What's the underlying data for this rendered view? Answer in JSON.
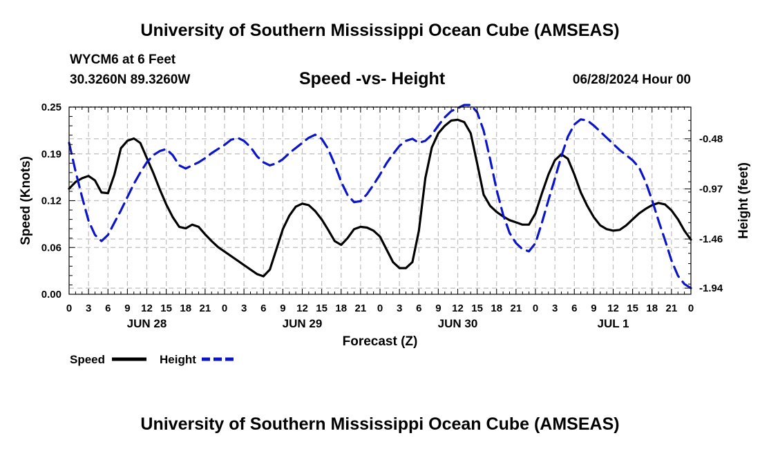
{
  "page": {
    "title_top": "University of Southern Mississippi Ocean Cube (AMSEAS)",
    "title_bottom": "University of Southern Mississippi Ocean Cube (AMSEAS)",
    "station": "WYCM6 at 6 Feet",
    "location": "30.3260N  89.3260W",
    "subtitle": "Speed -vs- Height",
    "datetime": "06/28/2024 Hour 00"
  },
  "chart_data": {
    "type": "line",
    "title": "Speed -vs- Height",
    "xlabel": "Forecast (Z)",
    "ylabel": "Speed (Knots)",
    "y2label": "Height (feet)",
    "xlim": [
      0,
      96
    ],
    "ylim": [
      0,
      0.25
    ],
    "y2lim": [
      -2.0,
      -0.17
    ],
    "grid": true,
    "x_tick_labels": [
      "0",
      "3",
      "6",
      "9",
      "12",
      "15",
      "18",
      "21",
      "0",
      "3",
      "6",
      "9",
      "12",
      "15",
      "18",
      "21",
      "0",
      "3",
      "6",
      "9",
      "12",
      "15",
      "18",
      "21",
      "0",
      "3",
      "6",
      "9",
      "12",
      "15",
      "18",
      "21",
      "0"
    ],
    "y_tick_labels": [
      "0.00",
      "0.06",
      "0.12",
      "0.19",
      "0.25"
    ],
    "y_ticks": [
      0,
      0.0625,
      0.125,
      0.1875,
      0.25
    ],
    "y2_tick_labels": [
      "-0.48",
      "-0.97",
      "-1.46",
      "-1.94"
    ],
    "y2_ticks": [
      -0.48,
      -0.97,
      -1.46,
      -1.94
    ],
    "day_labels": [
      {
        "label": "JUN 28",
        "hour": 12
      },
      {
        "label": "JUN 29",
        "hour": 36
      },
      {
        "label": "JUN 30",
        "hour": 60
      },
      {
        "label": "JUL 1",
        "hour": 84
      }
    ],
    "legend": [
      {
        "name": "Speed",
        "color": "#000000",
        "dash": false
      },
      {
        "name": "Height",
        "color": "#0a14c8",
        "dash": true
      }
    ],
    "series": [
      {
        "name": "Speed",
        "axis": "left",
        "color": "#000000",
        "x": [
          0,
          1,
          2,
          3,
          4,
          5,
          6,
          7,
          8,
          9,
          10,
          11,
          12,
          13,
          14,
          15,
          16,
          17,
          18,
          19,
          20,
          21,
          22,
          23,
          24,
          25,
          26,
          27,
          28,
          29,
          30,
          31,
          32,
          33,
          34,
          35,
          36,
          37,
          38,
          39,
          40,
          41,
          42,
          43,
          44,
          45,
          46,
          47,
          48,
          49,
          50,
          51,
          52,
          53,
          54,
          55,
          56,
          57,
          58,
          59,
          60,
          61,
          62,
          63,
          64,
          65,
          66,
          67,
          68,
          69,
          70,
          71,
          72,
          73,
          74,
          75,
          76,
          77,
          78,
          79,
          80,
          81,
          82,
          83,
          84,
          85,
          86,
          87,
          88,
          89,
          90,
          91,
          92,
          93,
          94,
          95,
          96
        ],
        "values": [
          0.141,
          0.15,
          0.155,
          0.158,
          0.152,
          0.136,
          0.135,
          0.16,
          0.195,
          0.205,
          0.208,
          0.202,
          0.182,
          0.162,
          0.14,
          0.12,
          0.103,
          0.09,
          0.088,
          0.093,
          0.09,
          0.08,
          0.071,
          0.063,
          0.057,
          0.051,
          0.045,
          0.039,
          0.033,
          0.027,
          0.024,
          0.033,
          0.06,
          0.087,
          0.105,
          0.117,
          0.121,
          0.119,
          0.111,
          0.1,
          0.086,
          0.071,
          0.066,
          0.075,
          0.087,
          0.09,
          0.089,
          0.085,
          0.077,
          0.06,
          0.043,
          0.035,
          0.035,
          0.043,
          0.085,
          0.155,
          0.196,
          0.215,
          0.225,
          0.232,
          0.233,
          0.23,
          0.215,
          0.175,
          0.133,
          0.118,
          0.11,
          0.104,
          0.099,
          0.096,
          0.093,
          0.093,
          0.108,
          0.135,
          0.16,
          0.179,
          0.187,
          0.181,
          0.16,
          0.136,
          0.118,
          0.103,
          0.092,
          0.087,
          0.085,
          0.086,
          0.092,
          0.1,
          0.108,
          0.114,
          0.119,
          0.122,
          0.12,
          0.112,
          0.1,
          0.085,
          0.073
        ]
      },
      {
        "name": "Height",
        "axis": "right",
        "color": "#0a14c8",
        "x": [
          0,
          1,
          2,
          3,
          4,
          5,
          6,
          7,
          8,
          9,
          10,
          11,
          12,
          13,
          14,
          15,
          16,
          17,
          18,
          19,
          20,
          21,
          22,
          23,
          24,
          25,
          26,
          27,
          28,
          29,
          30,
          31,
          32,
          33,
          34,
          35,
          36,
          37,
          38,
          39,
          40,
          41,
          42,
          43,
          44,
          45,
          46,
          47,
          48,
          49,
          50,
          51,
          52,
          53,
          54,
          55,
          56,
          57,
          58,
          59,
          60,
          61,
          62,
          63,
          64,
          65,
          66,
          67,
          68,
          69,
          70,
          71,
          72,
          73,
          74,
          75,
          76,
          77,
          78,
          79,
          80,
          81,
          82,
          83,
          84,
          85,
          86,
          87,
          88,
          89,
          90,
          91,
          92,
          93,
          94,
          95,
          96
        ],
        "values": [
          -0.52,
          -0.8,
          -1.05,
          -1.28,
          -1.42,
          -1.48,
          -1.42,
          -1.3,
          -1.18,
          -1.05,
          -0.92,
          -0.81,
          -0.71,
          -0.64,
          -0.6,
          -0.58,
          -0.64,
          -0.74,
          -0.77,
          -0.74,
          -0.71,
          -0.67,
          -0.62,
          -0.58,
          -0.54,
          -0.49,
          -0.47,
          -0.5,
          -0.56,
          -0.65,
          -0.71,
          -0.74,
          -0.72,
          -0.68,
          -0.62,
          -0.57,
          -0.52,
          -0.47,
          -0.44,
          -0.48,
          -0.58,
          -0.73,
          -0.9,
          -1.03,
          -1.1,
          -1.09,
          -1.02,
          -0.93,
          -0.83,
          -0.72,
          -0.63,
          -0.55,
          -0.5,
          -0.48,
          -0.52,
          -0.5,
          -0.44,
          -0.35,
          -0.27,
          -0.21,
          -0.18,
          -0.15,
          -0.15,
          -0.22,
          -0.4,
          -0.68,
          -0.98,
          -1.22,
          -1.4,
          -1.5,
          -1.56,
          -1.58,
          -1.5,
          -1.3,
          -1.08,
          -0.87,
          -0.65,
          -0.46,
          -0.34,
          -0.29,
          -0.3,
          -0.35,
          -0.41,
          -0.47,
          -0.53,
          -0.59,
          -0.64,
          -0.69,
          -0.76,
          -0.9,
          -1.08,
          -1.28,
          -1.47,
          -1.67,
          -1.82,
          -1.9,
          -1.94
        ]
      }
    ]
  }
}
